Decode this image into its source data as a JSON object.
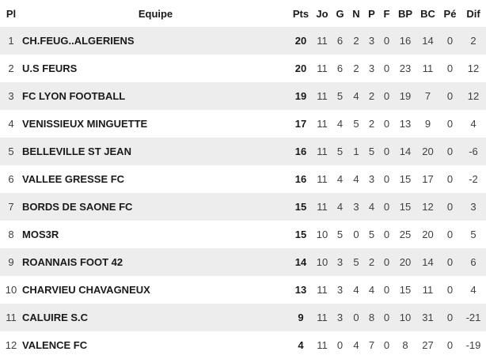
{
  "table": {
    "columns": [
      {
        "key": "pl",
        "label": "Pl"
      },
      {
        "key": "equipe",
        "label": "Equipe"
      },
      {
        "key": "pts",
        "label": "Pts"
      },
      {
        "key": "jo",
        "label": "Jo"
      },
      {
        "key": "g",
        "label": "G"
      },
      {
        "key": "n",
        "label": "N"
      },
      {
        "key": "p",
        "label": "P"
      },
      {
        "key": "f",
        "label": "F"
      },
      {
        "key": "bp",
        "label": "BP"
      },
      {
        "key": "bc",
        "label": "BC"
      },
      {
        "key": "pe",
        "label": "Pé"
      },
      {
        "key": "dif",
        "label": "Dif"
      }
    ],
    "rows": [
      {
        "pl": "1",
        "equipe": "CH.FEUG..ALGERIENS",
        "pts": "20",
        "jo": "11",
        "g": "6",
        "n": "2",
        "p": "3",
        "f": "0",
        "bp": "16",
        "bc": "14",
        "pe": "0",
        "dif": "2"
      },
      {
        "pl": "2",
        "equipe": "U.S FEURS",
        "pts": "20",
        "jo": "11",
        "g": "6",
        "n": "2",
        "p": "3",
        "f": "0",
        "bp": "23",
        "bc": "11",
        "pe": "0",
        "dif": "12"
      },
      {
        "pl": "3",
        "equipe": "FC LYON FOOTBALL",
        "pts": "19",
        "jo": "11",
        "g": "5",
        "n": "4",
        "p": "2",
        "f": "0",
        "bp": "19",
        "bc": "7",
        "pe": "0",
        "dif": "12"
      },
      {
        "pl": "4",
        "equipe": "VENISSIEUX MINGUETTE",
        "pts": "17",
        "jo": "11",
        "g": "4",
        "n": "5",
        "p": "2",
        "f": "0",
        "bp": "13",
        "bc": "9",
        "pe": "0",
        "dif": "4"
      },
      {
        "pl": "5",
        "equipe": "BELLEVILLE ST JEAN",
        "pts": "16",
        "jo": "11",
        "g": "5",
        "n": "1",
        "p": "5",
        "f": "0",
        "bp": "14",
        "bc": "20",
        "pe": "0",
        "dif": "-6"
      },
      {
        "pl": "6",
        "equipe": "VALLEE GRESSE FC",
        "pts": "16",
        "jo": "11",
        "g": "4",
        "n": "4",
        "p": "3",
        "f": "0",
        "bp": "15",
        "bc": "17",
        "pe": "0",
        "dif": "-2"
      },
      {
        "pl": "7",
        "equipe": "BORDS DE SAONE FC",
        "pts": "15",
        "jo": "11",
        "g": "4",
        "n": "3",
        "p": "4",
        "f": "0",
        "bp": "15",
        "bc": "12",
        "pe": "0",
        "dif": "3"
      },
      {
        "pl": "8",
        "equipe": "MOS3R",
        "pts": "15",
        "jo": "10",
        "g": "5",
        "n": "0",
        "p": "5",
        "f": "0",
        "bp": "25",
        "bc": "20",
        "pe": "0",
        "dif": "5"
      },
      {
        "pl": "9",
        "equipe": "ROANNAIS FOOT 42",
        "pts": "14",
        "jo": "10",
        "g": "3",
        "n": "5",
        "p": "2",
        "f": "0",
        "bp": "20",
        "bc": "14",
        "pe": "0",
        "dif": "6"
      },
      {
        "pl": "10",
        "equipe": "CHARVIEU CHAVAGNEUX",
        "pts": "13",
        "jo": "11",
        "g": "3",
        "n": "4",
        "p": "4",
        "f": "0",
        "bp": "15",
        "bc": "11",
        "pe": "0",
        "dif": "4"
      },
      {
        "pl": "11",
        "equipe": "CALUIRE S.C",
        "pts": "9",
        "jo": "11",
        "g": "3",
        "n": "0",
        "p": "8",
        "f": "0",
        "bp": "10",
        "bc": "31",
        "pe": "0",
        "dif": "-21"
      },
      {
        "pl": "12",
        "equipe": "VALENCE FC",
        "pts": "4",
        "jo": "11",
        "g": "0",
        "n": "4",
        "p": "7",
        "f": "0",
        "bp": "8",
        "bc": "27",
        "pe": "0",
        "dif": "-19"
      }
    ]
  },
  "colors": {
    "row_alt_bg": "#ededed",
    "row_bg": "#ffffff",
    "text_primary": "#1a1a1a",
    "text_secondary": "#3f3f3f"
  }
}
